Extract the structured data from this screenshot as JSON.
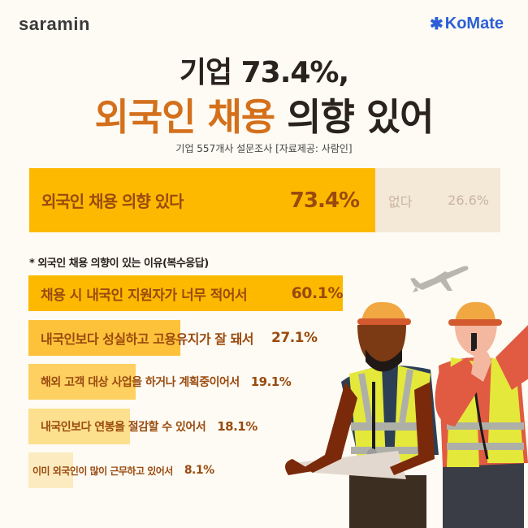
{
  "header": {
    "logo_left": "saramin",
    "logo_right": "KoMate",
    "logo_right_icon": "asterisk-icon"
  },
  "title": {
    "line1": "기업 73.4%,",
    "line2_accent": "외국인 채용",
    "line2_rest": " 의향 있어",
    "subtitle": "기업 557개사 설문조사  [자료제공: 사람인]"
  },
  "main_result": {
    "yes_label": "외국인 채용 의향 있다",
    "yes_value": "73.4%",
    "no_label": "없다",
    "no_value": "26.6%"
  },
  "reasons": {
    "title": "* 외국인 채용 의향이 있는 이유(복수응답)",
    "items": [
      {
        "label": "채용 시 내국인 지원자가 너무 적어서",
        "value": "60.1%"
      },
      {
        "label": "내국인보다 성실하고 고용유지가 잘 돼서",
        "value": "27.1%"
      },
      {
        "label": "해외 고객 대상 사업을 하거나 계획중이어서",
        "value": "19.1%"
      },
      {
        "label": "내국인보다 연봉을 절감할 수 있어서",
        "value": "18.1%"
      },
      {
        "label": "이미 외국인이 많이 근무하고 있어서",
        "value": "8.1%"
      }
    ]
  },
  "colors": {
    "background": "#fdfbf3",
    "accent_orange": "#d4701c",
    "bar_yes": "#fdb900",
    "bar_no": "#f3e9d6",
    "text_brown": "#9a4a0e",
    "saramin_blue": "#2f6fe0",
    "komate_blue": "#2c5fd6"
  },
  "chart_data": [
    {
      "type": "bar",
      "orientation": "horizontal-stacked",
      "title": "기업 73.4%, 외국인 채용 의향 있어",
      "subtitle": "기업 557개사 설문조사 [자료제공: 사람인]",
      "categories": [
        "외국인 채용 의향 있다",
        "없다"
      ],
      "values": [
        73.4,
        26.6
      ],
      "unit": "%"
    },
    {
      "type": "bar",
      "orientation": "horizontal",
      "title": "* 외국인 채용 의향이 있는 이유(복수응답)",
      "categories": [
        "채용 시 내국인 지원자가 너무 적어서",
        "내국인보다 성실하고 고용유지가 잘 돼서",
        "해외 고객 대상 사업을 하거나 계획중이어서",
        "내국인보다 연봉을 절감할 수 있어서",
        "이미 외국인이 많이 근무하고 있어서"
      ],
      "values": [
        60.1,
        27.1,
        19.1,
        18.1,
        8.1
      ],
      "unit": "%",
      "grid": false,
      "legend": "none"
    }
  ]
}
